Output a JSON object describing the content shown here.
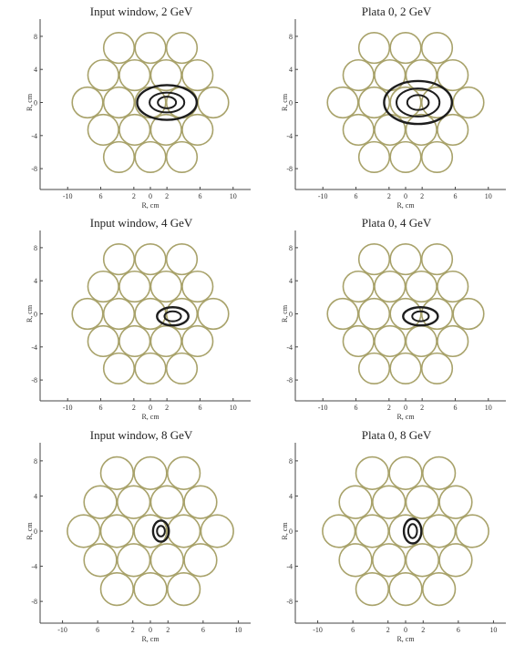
{
  "chart_data": [
    {
      "type": "scatter",
      "title": "Input window, 2 GeV",
      "xlabel": "R, cm",
      "ylabel": "R, cm",
      "xticks": [
        "-10",
        "6",
        "2",
        "0",
        "2",
        "6",
        "10"
      ],
      "yticks": [
        "8",
        "4",
        "0",
        "-4",
        "-8"
      ],
      "beam_center": [
        2,
        0
      ],
      "beam_rings": [
        [
          3.6,
          2.1
        ],
        [
          2.1,
          1.2
        ],
        [
          1.1,
          0.7
        ]
      ]
    },
    {
      "type": "scatter",
      "title": "Plata 0, 2 GeV",
      "xlabel": "R, cm",
      "ylabel": "R, cm",
      "xticks": [
        "-10",
        "6",
        "2",
        "0",
        "2",
        "6",
        "10"
      ],
      "yticks": [
        "8",
        "4",
        "0",
        "-4",
        "-8"
      ],
      "beam_center": [
        1.5,
        0
      ],
      "beam_rings": [
        [
          4.1,
          2.6
        ],
        [
          2.6,
          1.7
        ],
        [
          1.3,
          0.9
        ]
      ]
    },
    {
      "type": "scatter",
      "title": "Input window, 4 GeV",
      "xlabel": "R, cm",
      "ylabel": "R, cm",
      "xticks": [
        "-10",
        "6",
        "2",
        "0",
        "2",
        "6",
        "10"
      ],
      "yticks": [
        "8",
        "4",
        "0",
        "-4",
        "-8"
      ],
      "beam_center": [
        2.7,
        -0.3
      ],
      "beam_rings": [
        [
          1.9,
          1.1
        ],
        [
          1.0,
          0.6
        ]
      ]
    },
    {
      "type": "scatter",
      "title": "Plata 0, 4 GeV",
      "xlabel": "R, cm",
      "ylabel": "R, cm",
      "xticks": [
        "-10",
        "6",
        "2",
        "0",
        "2",
        "6",
        "10"
      ],
      "yticks": [
        "8",
        "4",
        "0",
        "-4",
        "-8"
      ],
      "beam_center": [
        1.8,
        -0.3
      ],
      "beam_rings": [
        [
          2.1,
          1.1
        ],
        [
          1.0,
          0.6
        ]
      ]
    },
    {
      "type": "scatter",
      "title": "Input window, 8 GeV",
      "xlabel": "R, cm",
      "ylabel": "R, cm",
      "xticks": [
        "-10",
        "6",
        "2",
        "0",
        "2",
        "6",
        "10"
      ],
      "yticks": [
        "8",
        "4",
        "0",
        "-4",
        "-8"
      ],
      "beam_center": [
        1.2,
        0
      ],
      "beam_rings": [
        [
          0.9,
          1.2
        ],
        [
          0.45,
          0.6
        ]
      ]
    },
    {
      "type": "scatter",
      "title": "Plata 0, 8 GeV",
      "xlabel": "R, cm",
      "ylabel": "R, cm",
      "xticks": [
        "-10",
        "6",
        "2",
        "0",
        "2",
        "6",
        "10"
      ],
      "yticks": [
        "8",
        "4",
        "0",
        "-4",
        "-8"
      ],
      "beam_center": [
        0.8,
        0
      ],
      "beam_rings": [
        [
          1.0,
          1.4
        ],
        [
          0.5,
          0.8
        ]
      ]
    }
  ],
  "tube_layout": {
    "radius": 1.85,
    "centers": [
      [
        -3.8,
        6.6
      ],
      [
        0,
        6.6
      ],
      [
        3.8,
        6.6
      ],
      [
        -5.7,
        3.3
      ],
      [
        -1.9,
        3.3
      ],
      [
        1.9,
        3.3
      ],
      [
        5.7,
        3.3
      ],
      [
        -7.6,
        0
      ],
      [
        -3.8,
        0
      ],
      [
        0,
        0
      ],
      [
        3.8,
        0
      ],
      [
        7.6,
        0
      ],
      [
        -5.7,
        -3.3
      ],
      [
        -1.9,
        -3.3
      ],
      [
        1.9,
        -3.3
      ],
      [
        5.7,
        -3.3
      ],
      [
        -3.8,
        -6.6
      ],
      [
        0,
        -6.6
      ],
      [
        3.8,
        -6.6
      ]
    ]
  },
  "colors": {
    "tube": "#a8a26a",
    "beam": "#1d1d1d",
    "axis": "#444444"
  }
}
